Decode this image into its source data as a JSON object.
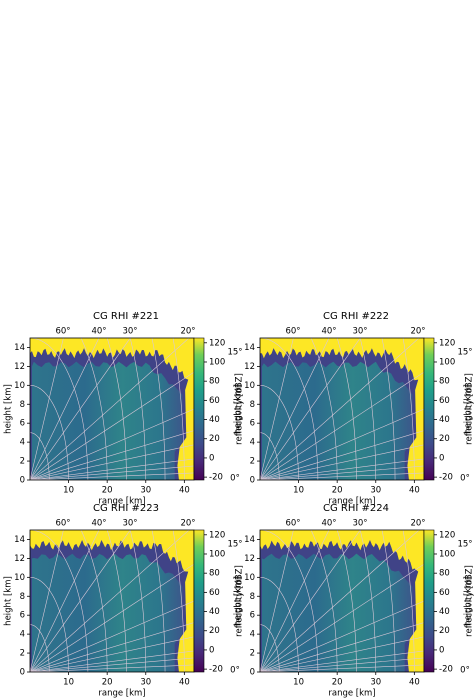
{
  "chart_data": [
    {
      "type": "heatmap",
      "title": "CG RHI #221",
      "xlabel": "range [km]",
      "ylabel": "height [km]",
      "right_ylabel": "height [km]",
      "xlim": [
        0,
        42.5
      ],
      "xticks": [
        10,
        20,
        30,
        40
      ],
      "ylim": [
        0,
        15
      ],
      "yticks": [
        0,
        2,
        4,
        6,
        8,
        10,
        12,
        14
      ],
      "colorbar": {
        "label": "reflectivity [dBZ]",
        "lim": [
          -23,
          125
        ],
        "ticks": [
          -20,
          0,
          20,
          40,
          60,
          80,
          100,
          120
        ],
        "colormap": "viridis"
      },
      "elevation_labels_top": [
        "60°",
        "40°",
        "30°",
        "20°"
      ],
      "elevation_labels_right": [
        "15°",
        "0°"
      ]
    },
    {
      "type": "heatmap",
      "title": "CG RHI #222",
      "xlabel": "range [km]",
      "ylabel": "height [km]",
      "right_ylabel": "height [km]",
      "xlim": [
        0,
        42.5
      ],
      "xticks": [
        10,
        20,
        30,
        40
      ],
      "ylim": [
        0,
        15
      ],
      "yticks": [
        0,
        2,
        4,
        6,
        8,
        10,
        12,
        14
      ],
      "colorbar": {
        "label": "reflectivity [dBZ]",
        "lim": [
          -23,
          125
        ],
        "ticks": [
          -20,
          0,
          20,
          40,
          60,
          80,
          100,
          120
        ],
        "colormap": "viridis"
      },
      "elevation_labels_top": [
        "60°",
        "40°",
        "30°",
        "20°"
      ],
      "elevation_labels_right": [
        "15°",
        "0°"
      ]
    },
    {
      "type": "heatmap",
      "title": "CG RHI #223",
      "xlabel": "range [km]",
      "ylabel": "height [km]",
      "right_ylabel": "height [km]",
      "xlim": [
        0,
        42.5
      ],
      "xticks": [
        10,
        20,
        30,
        40
      ],
      "ylim": [
        0,
        15
      ],
      "yticks": [
        0,
        2,
        4,
        6,
        8,
        10,
        12,
        14
      ],
      "colorbar": {
        "label": "reflectivity [dBZ]",
        "lim": [
          -23,
          125
        ],
        "ticks": [
          -20,
          0,
          20,
          40,
          60,
          80,
          100,
          120
        ],
        "colormap": "viridis"
      },
      "elevation_labels_top": [
        "60°",
        "40°",
        "30°",
        "20°"
      ],
      "elevation_labels_right": [
        "15°",
        "0°"
      ]
    },
    {
      "type": "heatmap",
      "title": "CG RHI #224",
      "xlabel": "range [km]",
      "ylabel": "height [km]",
      "right_ylabel": "height [km]",
      "xlim": [
        0,
        42.5
      ],
      "xticks": [
        10,
        20,
        30,
        40
      ],
      "ylim": [
        0,
        15
      ],
      "yticks": [
        0,
        2,
        4,
        6,
        8,
        10,
        12,
        14
      ],
      "colorbar": {
        "label": "reflectivity [dBZ]",
        "lim": [
          -23,
          125
        ],
        "ticks": [
          -20,
          0,
          20,
          40,
          60,
          80,
          100,
          120
        ],
        "colormap": "viridis"
      },
      "elevation_labels_top": [
        "60°",
        "40°",
        "30°",
        "20°"
      ],
      "elevation_labels_right": [
        "15°",
        "0°"
      ]
    }
  ]
}
